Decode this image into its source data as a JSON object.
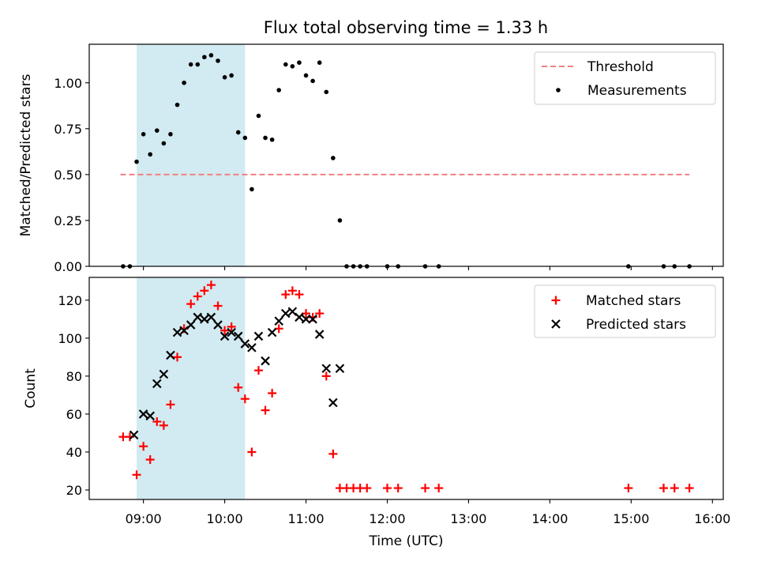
{
  "title": "Flux total observing time = 1.33 h",
  "colors": {
    "threshold": "#f08080",
    "measurements": "#000000",
    "matched": "#ff0000",
    "predicted": "#000000",
    "shade": "#add8e6"
  },
  "chart_data": [
    {
      "type": "scatter",
      "ylabel": "Matched/Predicted stars",
      "ylim": [
        0,
        1.21
      ],
      "yticks": [
        0.0,
        0.25,
        0.5,
        0.75,
        1.0
      ],
      "ytick_labels": [
        "0.00",
        "0.25",
        "0.50",
        "0.75",
        "1.00"
      ],
      "shaded_span": [
        "08:55",
        "10:15"
      ],
      "legend_position": "top-right",
      "threshold": {
        "name": "Threshold",
        "y": 0.5,
        "x_range": [
          "08:43",
          "15:43"
        ]
      },
      "series": [
        {
          "name": "Measurements",
          "points": [
            [
              "08:45",
              0.0
            ],
            [
              "08:50",
              0.0
            ],
            [
              "08:55",
              0.57
            ],
            [
              "09:00",
              0.72
            ],
            [
              "09:05",
              0.61
            ],
            [
              "09:10",
              0.74
            ],
            [
              "09:15",
              0.67
            ],
            [
              "09:20",
              0.72
            ],
            [
              "09:25",
              0.88
            ],
            [
              "09:30",
              1.0
            ],
            [
              "09:35",
              1.1
            ],
            [
              "09:40",
              1.1
            ],
            [
              "09:45",
              1.14
            ],
            [
              "09:50",
              1.15
            ],
            [
              "09:55",
              1.12
            ],
            [
              "10:00",
              1.03
            ],
            [
              "10:05",
              1.04
            ],
            [
              "10:10",
              0.73
            ],
            [
              "10:15",
              0.7
            ],
            [
              "10:20",
              0.42
            ],
            [
              "10:25",
              0.82
            ],
            [
              "10:30",
              0.7
            ],
            [
              "10:35",
              0.69
            ],
            [
              "10:40",
              0.96
            ],
            [
              "10:45",
              1.1
            ],
            [
              "10:50",
              1.09
            ],
            [
              "10:55",
              1.11
            ],
            [
              "11:00",
              1.04
            ],
            [
              "11:05",
              1.01
            ],
            [
              "11:10",
              1.11
            ],
            [
              "11:15",
              0.95
            ],
            [
              "11:20",
              0.59
            ],
            [
              "11:25",
              0.25
            ],
            [
              "11:30",
              0.0
            ],
            [
              "11:35",
              0.0
            ],
            [
              "11:40",
              0.0
            ],
            [
              "11:45",
              0.0
            ],
            [
              "12:00",
              0.0
            ],
            [
              "12:08",
              0.0
            ],
            [
              "12:28",
              0.0
            ],
            [
              "12:38",
              0.0
            ],
            [
              "14:58",
              0.0
            ],
            [
              "15:24",
              0.0
            ],
            [
              "15:32",
              0.0
            ],
            [
              "15:43",
              0.0
            ]
          ]
        }
      ]
    },
    {
      "type": "scatter",
      "xlabel": "Time (UTC)",
      "ylabel": "Count",
      "xlim": [
        "08:20",
        "16:08"
      ],
      "xticks": [
        "09:00",
        "10:00",
        "11:00",
        "12:00",
        "13:00",
        "14:00",
        "15:00",
        "16:00"
      ],
      "ylim": [
        15,
        132
      ],
      "yticks": [
        20,
        40,
        60,
        80,
        100,
        120
      ],
      "shaded_span": [
        "08:55",
        "10:15"
      ],
      "legend_position": "top-right",
      "series": [
        {
          "name": "Matched stars",
          "points": [
            [
              "08:45",
              48
            ],
            [
              "08:50",
              48
            ],
            [
              "08:55",
              28
            ],
            [
              "09:00",
              43
            ],
            [
              "09:05",
              36
            ],
            [
              "09:10",
              56
            ],
            [
              "09:15",
              54
            ],
            [
              "09:20",
              65
            ],
            [
              "09:25",
              90
            ],
            [
              "09:30",
              105
            ],
            [
              "09:35",
              118
            ],
            [
              "09:40",
              122
            ],
            [
              "09:45",
              125
            ],
            [
              "09:50",
              128
            ],
            [
              "09:55",
              117
            ],
            [
              "10:00",
              104
            ],
            [
              "10:05",
              106
            ],
            [
              "10:10",
              74
            ],
            [
              "10:15",
              68
            ],
            [
              "10:20",
              40
            ],
            [
              "10:25",
              83
            ],
            [
              "10:30",
              62
            ],
            [
              "10:35",
              71
            ],
            [
              "10:40",
              105
            ],
            [
              "10:45",
              123
            ],
            [
              "10:50",
              125
            ],
            [
              "10:55",
              123
            ],
            [
              "11:00",
              113
            ],
            [
              "11:05",
              111
            ],
            [
              "11:10",
              113
            ],
            [
              "11:15",
              80
            ],
            [
              "11:20",
              39
            ],
            [
              "11:25",
              21
            ],
            [
              "11:30",
              21
            ],
            [
              "11:35",
              21
            ],
            [
              "11:40",
              21
            ],
            [
              "11:45",
              21
            ],
            [
              "12:00",
              21
            ],
            [
              "12:08",
              21
            ],
            [
              "12:28",
              21
            ],
            [
              "12:38",
              21
            ],
            [
              "14:58",
              21
            ],
            [
              "15:24",
              21
            ],
            [
              "15:32",
              21
            ],
            [
              "15:43",
              21
            ]
          ]
        },
        {
          "name": "Predicted stars",
          "points": [
            [
              "08:53",
              49
            ],
            [
              "09:00",
              60
            ],
            [
              "09:05",
              59
            ],
            [
              "09:10",
              76
            ],
            [
              "09:15",
              81
            ],
            [
              "09:20",
              91
            ],
            [
              "09:25",
              103
            ],
            [
              "09:30",
              104
            ],
            [
              "09:35",
              107
            ],
            [
              "09:40",
              111
            ],
            [
              "09:45",
              110
            ],
            [
              "09:50",
              111
            ],
            [
              "09:55",
              107
            ],
            [
              "10:00",
              101
            ],
            [
              "10:05",
              103
            ],
            [
              "10:10",
              101
            ],
            [
              "10:15",
              97
            ],
            [
              "10:20",
              95
            ],
            [
              "10:25",
              101
            ],
            [
              "10:30",
              88
            ],
            [
              "10:35",
              103
            ],
            [
              "10:40",
              109
            ],
            [
              "10:45",
              113
            ],
            [
              "10:50",
              114
            ],
            [
              "10:55",
              111
            ],
            [
              "11:00",
              110
            ],
            [
              "11:05",
              110
            ],
            [
              "11:10",
              102
            ],
            [
              "11:15",
              84
            ],
            [
              "11:20",
              66
            ],
            [
              "11:25",
              84
            ]
          ]
        }
      ]
    }
  ]
}
